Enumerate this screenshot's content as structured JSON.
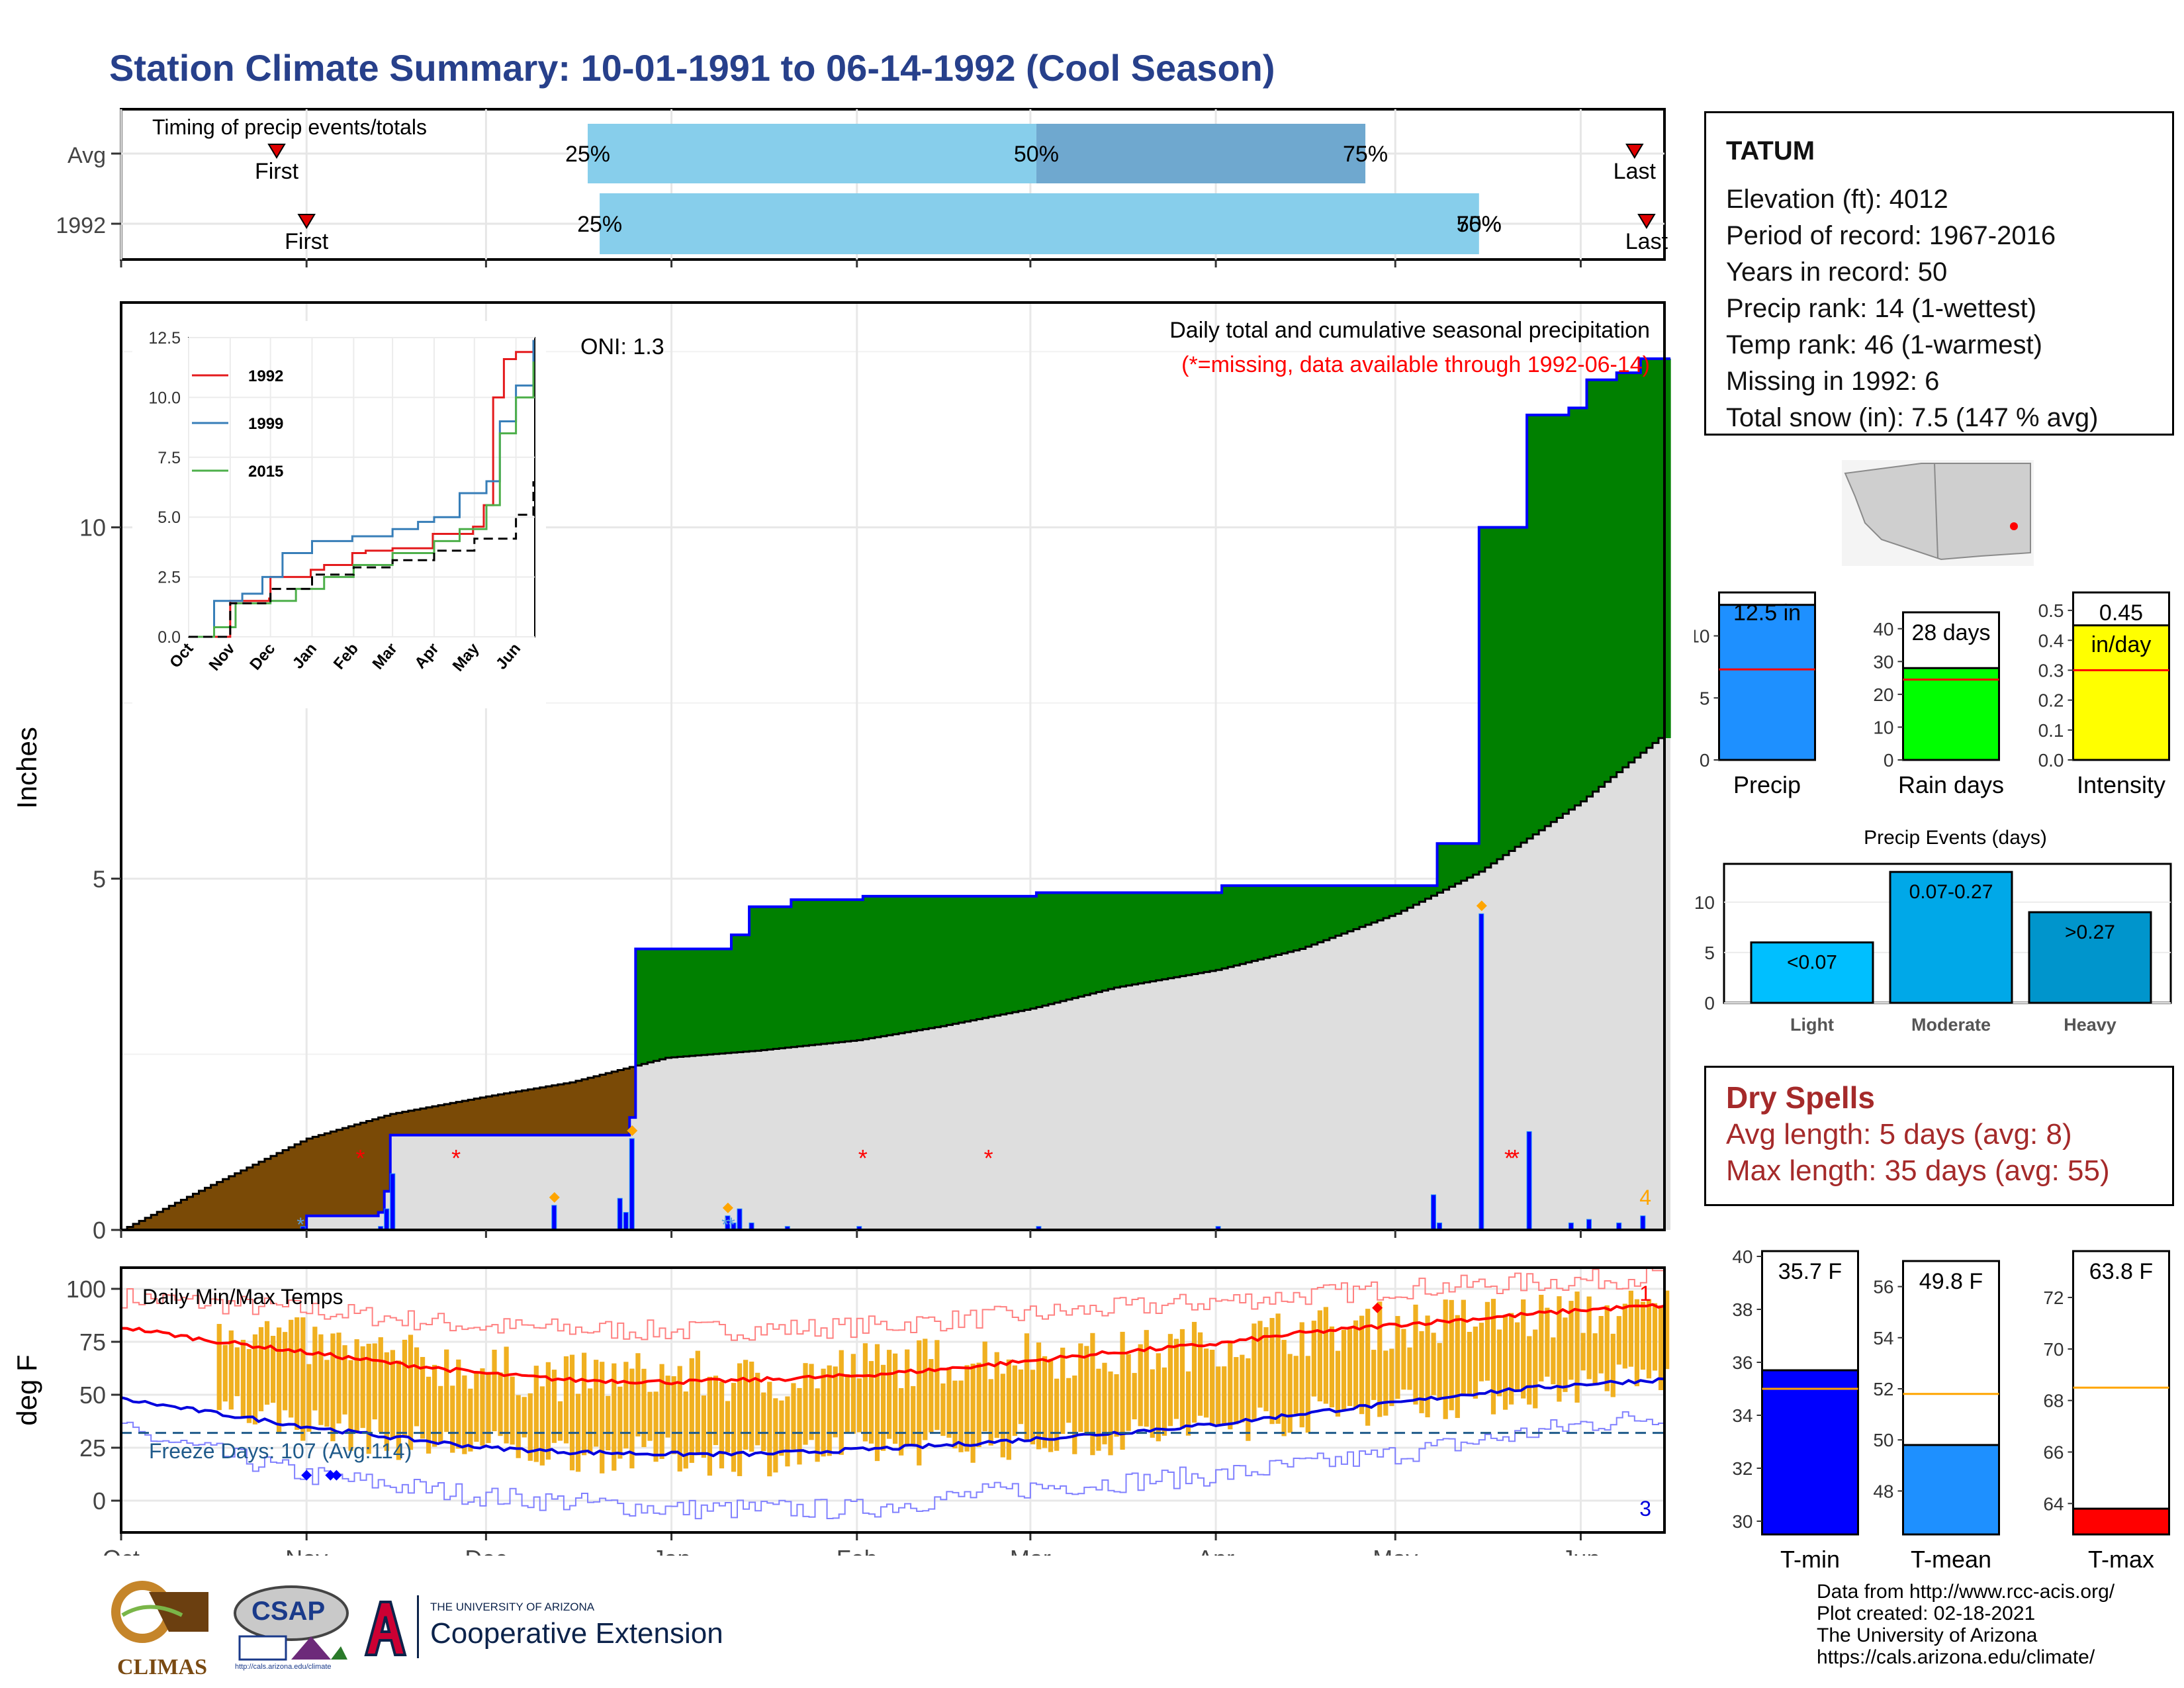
{
  "title": "Station Climate Summary: 10-01-1991 to 06-14-1992 (Cool Season)",
  "station": {
    "name": "TATUM",
    "lines": [
      "Elevation (ft): 4012",
      "Period of record: 1967-2016",
      "Years in record: 50",
      "Precip rank: 14 (1-wettest)",
      "Temp rank: 46 (1-warmest)",
      "Missing in 1992: 6",
      "Total snow (in): 7.5 (147 % avg)"
    ]
  },
  "dry_spells": {
    "title": "Dry Spells",
    "avg": "Avg length: 5 days (avg: 8)",
    "max": "Max length: 35 days (avg: 55)"
  },
  "credits": [
    "Data from http://www.rcc-acis.org/",
    "Plot created: 02-18-2021",
    "The University of Arizona",
    "https://cals.arizona.edu/climate/"
  ],
  "logos": {
    "climas": "CLIMAS",
    "csap": "CSAP",
    "csap_url": "http://cals.arizona.edu/climate",
    "ua_small": "THE UNIVERSITY OF ARIZONA",
    "ua_big": "Cooperative Extension"
  },
  "chart_data": [
    {
      "type": "bar",
      "title": "Timing of precip events/totals",
      "categories": [
        "Avg",
        "1992"
      ],
      "x_axis": "month, Oct to mid-Jun",
      "rows": [
        {
          "name": "Avg",
          "first": "Oct 27",
          "p25": "Dec 18",
          "p50": "Mar 2",
          "p75": "Apr 26",
          "last": "Jun 10",
          "p25_label": "25%",
          "p50_label": "50%",
          "p75_label": "75%"
        },
        {
          "name": "1992",
          "first": "Nov 1",
          "p25": "Dec 20",
          "p50": "May 15",
          "p75": "May 15",
          "last": "Jun 12",
          "p25_label": "25%",
          "p50_label": "50%",
          "p75_label": "75%"
        }
      ],
      "markers": [
        "First",
        "Last"
      ]
    },
    {
      "type": "area",
      "title": "Daily total and cumulative seasonal precipitation",
      "subtitle": "(*=missing, data available through 1992-06-14)",
      "annotation": "ONI: 1.3",
      "ylabel": "Inches",
      "ylim": [
        0,
        13.2
      ],
      "yticks": [
        0,
        5,
        10
      ],
      "xticks": [
        "Oct",
        "Nov",
        "Dec",
        "Jan",
        "Feb",
        "Mar",
        "Apr",
        "May",
        "Jun"
      ],
      "count_label": "4",
      "cumulative_1992": {
        "x": [
          "1991-10-01",
          "1991-10-31",
          "1991-11-01",
          "1991-11-13",
          "1991-11-14",
          "1991-11-15",
          "1991-12-24",
          "1991-12-25",
          "1991-12-26",
          "1992-01-10",
          "1992-01-11",
          "1992-01-13",
          "1992-01-14",
          "1992-01-20",
          "1992-01-21",
          "1992-02-01",
          "1992-02-02",
          "1992-03-01",
          "1992-03-02",
          "1992-04-01",
          "1992-04-02",
          "1992-05-07",
          "1992-05-08",
          "1992-05-14",
          "1992-05-15",
          "1992-05-22",
          "1992-05-23",
          "1992-05-29",
          "1992-05-30",
          "1992-06-01",
          "1992-06-02",
          "1992-06-06",
          "1992-06-07",
          "1992-06-10",
          "1992-06-11",
          "1992-06-14"
        ],
        "y": [
          0.0,
          0.0,
          0.2,
          0.25,
          0.55,
          1.35,
          1.35,
          1.6,
          4.0,
          4.0,
          4.2,
          4.2,
          4.6,
          4.6,
          4.7,
          4.7,
          4.75,
          4.75,
          4.8,
          4.8,
          4.9,
          4.9,
          5.5,
          5.5,
          10.0,
          10.0,
          11.6,
          11.6,
          11.7,
          11.7,
          12.1,
          12.1,
          12.2,
          12.2,
          12.4,
          12.4
        ]
      },
      "cumulative_avg": {
        "x": [
          "1991-10-01",
          "1991-10-15",
          "1991-11-01",
          "1991-11-15",
          "1991-12-01",
          "1991-12-15",
          "1991-12-31",
          "1992-01-15",
          "1992-02-01",
          "1992-02-15",
          "1992-03-01",
          "1992-03-15",
          "1992-04-01",
          "1992-04-15",
          "1992-05-01",
          "1992-05-15",
          "1992-06-01",
          "1992-06-14"
        ],
        "y": [
          0.0,
          0.6,
          1.3,
          1.65,
          1.9,
          2.1,
          2.45,
          2.55,
          2.7,
          2.9,
          3.15,
          3.45,
          3.7,
          4.0,
          4.5,
          5.1,
          6.1,
          7.0
        ]
      },
      "daily_1992": {
        "x": [
          "1991-10-31",
          "1991-11-13",
          "1991-11-14",
          "1991-11-15",
          "1991-12-12",
          "1991-12-23",
          "1991-12-24",
          "1991-12-25",
          "1992-01-10",
          "1992-01-11",
          "1992-01-12",
          "1992-01-14",
          "1992-01-20",
          "1992-02-01",
          "1992-03-02",
          "1992-04-01",
          "1992-05-07",
          "1992-05-08",
          "1992-05-15",
          "1992-05-23",
          "1992-05-30",
          "1992-06-02",
          "1992-06-07",
          "1992-06-11"
        ],
        "y": [
          0.05,
          0.05,
          0.3,
          0.8,
          0.35,
          0.45,
          0.25,
          1.3,
          0.2,
          0.1,
          0.3,
          0.1,
          0.05,
          0.05,
          0.05,
          0.05,
          0.5,
          0.1,
          4.5,
          1.4,
          0.1,
          0.15,
          0.1,
          0.2
        ]
      },
      "missing_days": [
        "1991-11-10",
        "1991-11-26",
        "1992-02-02",
        "1992-02-23",
        "1992-05-20",
        "1992-05-21"
      ],
      "snow_days": [
        "1991-10-31",
        "1992-01-10",
        "1992-01-11"
      ],
      "event_markers": [
        "1991-12-12",
        "1991-12-25",
        "1992-01-10",
        "1992-05-15"
      ]
    },
    {
      "type": "line",
      "title": "",
      "series": [
        {
          "name": "1992",
          "color": "#e41a1c",
          "x": [
            "Oct 1",
            "Oct 31",
            "Nov 1",
            "Nov 30",
            "Dec 1",
            "Dec 31",
            "Jan 10",
            "Jan 31",
            "Feb 10",
            "Mar 1",
            "Mar 31",
            "Apr 30",
            "May 8",
            "May 14",
            "May 15",
            "May 22",
            "May 23",
            "Jun 1",
            "Jun 14"
          ],
          "y": [
            0,
            0,
            1.5,
            1.6,
            2.5,
            2.8,
            3.0,
            3.5,
            3.6,
            3.7,
            4.3,
            4.6,
            5.5,
            5.5,
            10.0,
            10.0,
            11.6,
            11.9,
            12.4
          ]
        },
        {
          "name": "1999",
          "color": "#377eb8",
          "x": [
            "Oct 1",
            "Oct 20",
            "Nov 10",
            "Nov 25",
            "Dec 10",
            "Jan 1",
            "Jan 31",
            "Mar 1",
            "Mar 20",
            "Apr 1",
            "Apr 20",
            "May 10",
            "May 20",
            "Jun 1",
            "Jun 14"
          ],
          "y": [
            0,
            1.5,
            1.8,
            2.5,
            3.5,
            4.0,
            4.2,
            4.5,
            4.8,
            5.0,
            6.0,
            6.5,
            9.0,
            10.5,
            12.4
          ]
        },
        {
          "name": "2015",
          "color": "#4daf4a",
          "x": [
            "Oct 1",
            "Oct 20",
            "Nov 5",
            "Dec 1",
            "Dec 20",
            "Jan 10",
            "Feb 1",
            "Mar 1",
            "Apr 1",
            "Apr 20",
            "May 10",
            "May 20",
            "Jun 1",
            "Jun 14"
          ],
          "y": [
            0,
            0.4,
            1.4,
            1.5,
            2.0,
            2.5,
            3.0,
            3.5,
            4.0,
            4.5,
            5.5,
            8.5,
            10.0,
            11.5
          ]
        },
        {
          "name": "Avg",
          "color": "#000000",
          "x": [
            "Oct 1",
            "Nov 1",
            "Dec 1",
            "Jan 1",
            "Feb 1",
            "Mar 1",
            "Apr 1",
            "May 1",
            "Jun 1",
            "Jun 14"
          ],
          "y": [
            0,
            1.4,
            2.0,
            2.6,
            2.9,
            3.2,
            3.6,
            4.1,
            5.1,
            6.5
          ]
        }
      ],
      "ylim": [
        0,
        12.5
      ],
      "yticks": [
        "0.0",
        "2.5",
        "5.0",
        "7.5",
        "10.0",
        "12.5"
      ],
      "xticks": [
        "Oct",
        "Nov",
        "Dec",
        "Jan",
        "Feb",
        "Mar",
        "Apr",
        "May",
        "Jun"
      ]
    },
    {
      "type": "line",
      "title": "Daily Min/Max Temps",
      "ylabel": "deg F",
      "ylim": [
        -15,
        110
      ],
      "yticks": [
        0,
        25,
        50,
        75,
        100
      ],
      "xticks": [
        "Oct",
        "Nov",
        "Dec",
        "Jan",
        "Feb",
        "Mar",
        "Apr",
        "May",
        "Jun"
      ],
      "freeze_label": "Freeze Days: 107 (Avg:114)",
      "freeze_line": 32,
      "record_high_count": "1",
      "record_low_count": "3",
      "avg_max": {
        "x": [
          "Oct 1",
          "Oct 15",
          "Nov 1",
          "Nov 15",
          "Dec 1",
          "Dec 15",
          "Jan 1",
          "Jan 15",
          "Feb 1",
          "Feb 15",
          "Mar 1",
          "Mar 15",
          "Apr 1",
          "Apr 15",
          "May 1",
          "May 15",
          "Jun 1",
          "Jun 14"
        ],
        "y": [
          82,
          76,
          70,
          65,
          60,
          57,
          56,
          57,
          59,
          62,
          66,
          70,
          74,
          79,
          83,
          86,
          90,
          92
        ]
      },
      "avg_min": {
        "x": [
          "Oct 1",
          "Oct 15",
          "Nov 1",
          "Nov 15",
          "Dec 1",
          "Dec 15",
          "Jan 1",
          "Jan 15",
          "Feb 1",
          "Feb 15",
          "Mar 1",
          "Mar 15",
          "Apr 1",
          "Apr 15",
          "May 1",
          "May 15",
          "Jun 1",
          "Jun 14"
        ],
        "y": [
          48,
          42,
          35,
          30,
          25,
          23,
          22,
          22,
          24,
          26,
          29,
          32,
          36,
          41,
          46,
          51,
          55,
          57
        ]
      },
      "record_max": {
        "x": [
          "Oct 1",
          "Nov 1",
          "Dec 1",
          "Jan 1",
          "Feb 1",
          "Mar 1",
          "Apr 1",
          "May 1",
          "Jun 1",
          "Jun 14"
        ],
        "y": [
          96,
          90,
          82,
          80,
          82,
          88,
          94,
          100,
          104,
          106
        ]
      },
      "record_min": {
        "x": [
          "Oct 1",
          "Nov 1",
          "Dec 1",
          "Jan 1",
          "Feb 1",
          "Mar 1",
          "Apr 1",
          "May 1",
          "Jun 1",
          "Jun 14"
        ],
        "y": [
          33,
          12,
          2,
          -4,
          -4,
          6,
          12,
          22,
          36,
          40
        ]
      },
      "daily_max": {
        "x": [
          "Oct 17",
          "Nov 1",
          "Nov 15",
          "Dec 1",
          "Dec 15",
          "Jan 1",
          "Jan 15",
          "Feb 1",
          "Feb 15",
          "Mar 1",
          "Mar 15",
          "Apr 1",
          "Apr 15",
          "May 1",
          "May 15",
          "Jun 1",
          "Jun 14"
        ],
        "y": [
          84,
          74,
          68,
          62,
          58,
          60,
          56,
          64,
          66,
          70,
          68,
          75,
          80,
          83,
          86,
          88,
          90
        ]
      },
      "daily_min": {
        "x": [
          "Oct 17",
          "Nov 1",
          "Nov 15",
          "Dec 1",
          "Dec 15",
          "Jan 1",
          "Jan 15",
          "Feb 1",
          "Feb 15",
          "Mar 1",
          "Mar 15",
          "Apr 1",
          "Apr 15",
          "May 1",
          "May 15",
          "Jun 1",
          "Jun 14"
        ],
        "y": [
          45,
          36,
          28,
          25,
          22,
          21,
          20,
          24,
          26,
          28,
          30,
          35,
          40,
          46,
          48,
          55,
          58
        ]
      },
      "record_low_markers": [
        "Nov 1",
        "Nov 5",
        "Nov 6"
      ],
      "record_high_markers": [
        "Apr 28"
      ]
    },
    {
      "type": "bar",
      "title": "",
      "categories": [
        "Precip",
        "Rain days",
        "Intensity"
      ],
      "panels": [
        {
          "name": "Precip",
          "value": 12.5,
          "avg": 7.3,
          "ylim": [
            0,
            13.5
          ],
          "yticks": [
            "0",
            "5",
            "10"
          ],
          "label": "12.5 in",
          "fill": "#1e90ff"
        },
        {
          "name": "Rain days",
          "value": 28,
          "avg": 24.5,
          "ylim": [
            0,
            45
          ],
          "yticks": [
            "0",
            "10",
            "20",
            "30",
            "40"
          ],
          "label": "28 days",
          "fill": "#00ff00"
        },
        {
          "name": "Intensity",
          "value": 0.45,
          "avg": 0.3,
          "ylim": [
            0,
            0.56
          ],
          "yticks": [
            "0.0",
            "0.1",
            "0.2",
            "0.3",
            "0.4",
            "0.5"
          ],
          "label": "0.45",
          "label2": "in/day",
          "fill": "#ffff00"
        }
      ]
    },
    {
      "type": "bar",
      "title": "Precip Events (days)",
      "categories": [
        "Light",
        "Moderate",
        "Heavy"
      ],
      "values": [
        6,
        13,
        9
      ],
      "bar_labels": [
        "<0.07",
        "0.07-0.27",
        ">0.27"
      ],
      "ylim": [
        0,
        13.8
      ],
      "yticks": [
        "0",
        "5",
        "10"
      ],
      "colors": [
        "#00bfff",
        "#00a8e8",
        "#0095cc"
      ]
    },
    {
      "type": "bar",
      "title": "",
      "categories": [
        "T-min",
        "T-mean",
        "T-max"
      ],
      "panels": [
        {
          "name": "T-min",
          "value": 35.7,
          "avg": 35.0,
          "ylim": [
            29.5,
            40.2
          ],
          "yticks": [
            "30",
            "32",
            "34",
            "36",
            "38",
            "40"
          ],
          "label": "35.7 F",
          "fill": "#0000ff"
        },
        {
          "name": "T-mean",
          "value": 49.8,
          "avg": 51.8,
          "ylim": [
            46.3,
            57.0
          ],
          "yticks": [
            "48",
            "50",
            "52",
            "54",
            "56"
          ],
          "label": "49.8 F",
          "fill": "#1e90ff"
        },
        {
          "name": "T-max",
          "value": 63.8,
          "avg": 68.5,
          "ylim": [
            62.8,
            73.8
          ],
          "yticks": [
            "64",
            "66",
            "68",
            "70",
            "72"
          ],
          "label": "63.8 F",
          "fill": "#ff0000"
        }
      ]
    }
  ]
}
